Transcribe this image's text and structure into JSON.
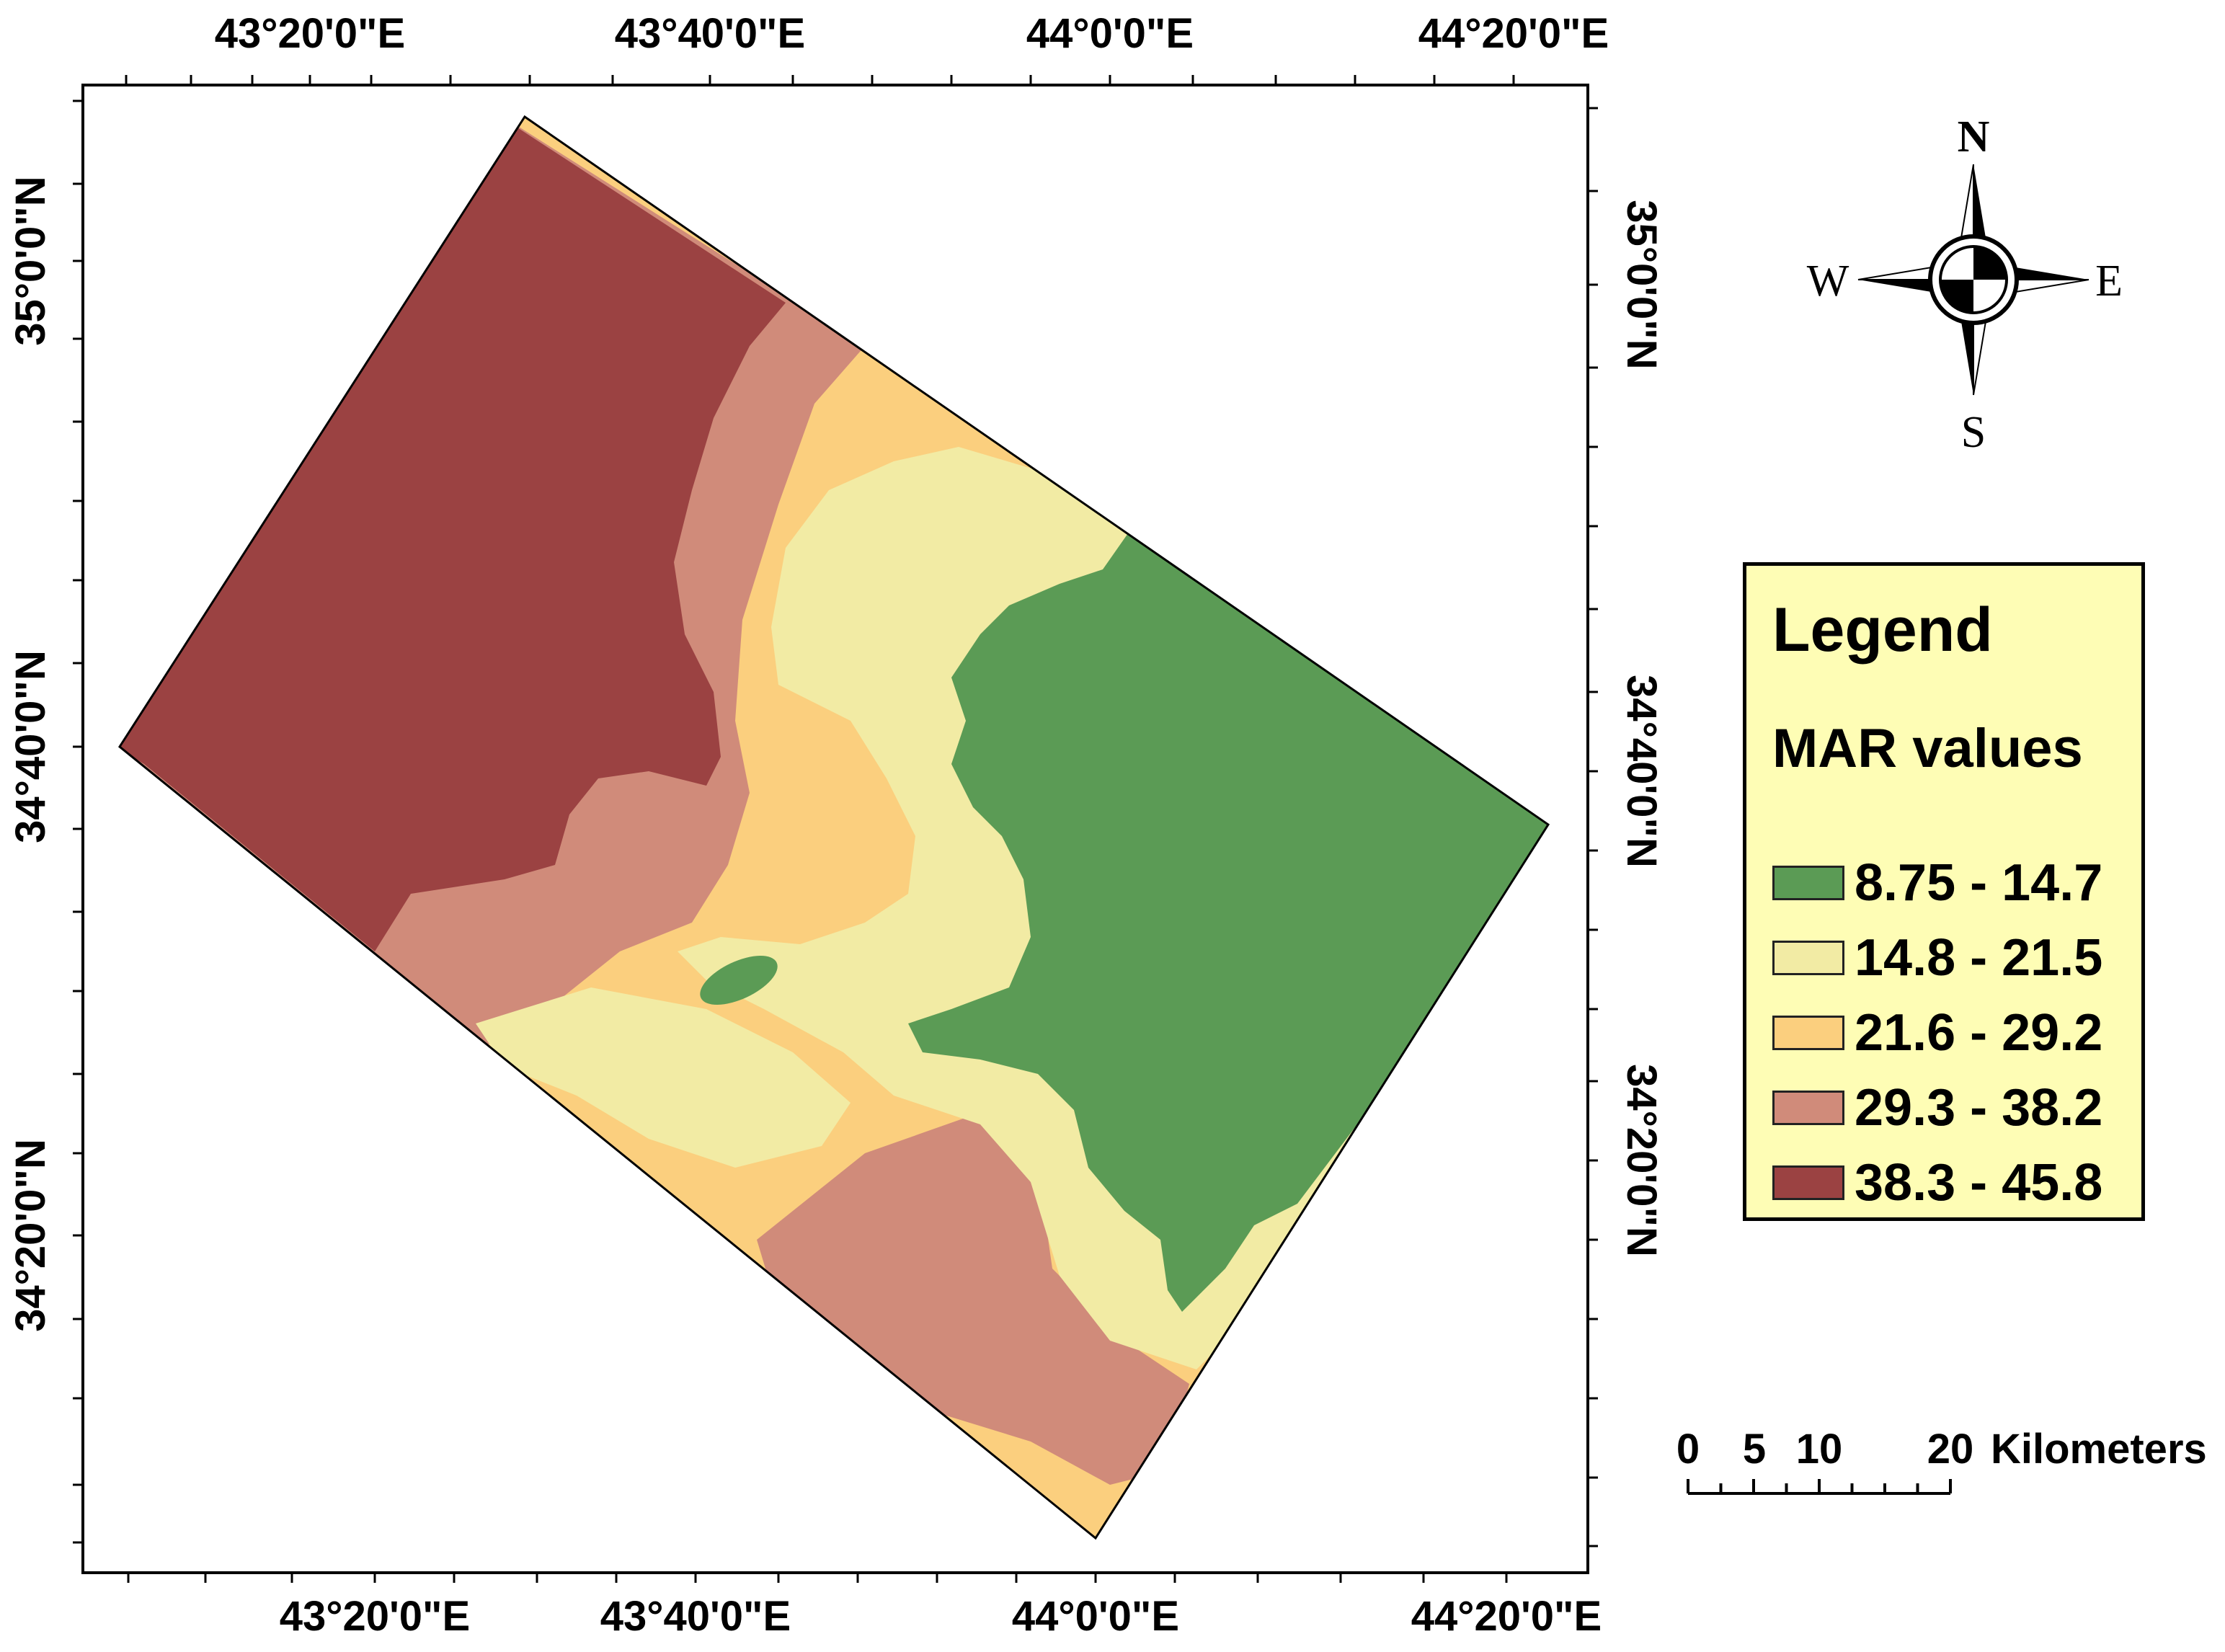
{
  "map": {
    "lon_ticks_top": [
      "43°20'0\"E",
      "43°40'0\"E",
      "44°0'0\"E",
      "44°20'0\"E"
    ],
    "lon_ticks_bottom": [
      "43°20'0\"E",
      "43°40'0\"E",
      "44°0'0\"E",
      "44°20'0\"E"
    ],
    "lat_ticks_left": [
      "35°0'0\"N",
      "34°40'0\"N",
      "34°20'0\"N"
    ],
    "lat_ticks_right": [
      "35°0'0\"N",
      "34°40'0\"N",
      "34°20'0\"N"
    ]
  },
  "compass": {
    "n": "N",
    "s": "S",
    "e": "E",
    "w": "W"
  },
  "legend": {
    "title": "Legend",
    "subtitle": "MAR values",
    "items": [
      {
        "label": "8.75 - 14.7",
        "color": "#5b9b55"
      },
      {
        "label": "14.8 - 21.5",
        "color": "#f2eba4"
      },
      {
        "label": "21.6 - 29.2",
        "color": "#fbcf7e"
      },
      {
        "label": "29.3 - 38.2",
        "color": "#d08b7a"
      },
      {
        "label": "38.3 - 45.8",
        "color": "#9b4242"
      }
    ]
  },
  "scale_bar": {
    "labels": [
      "0",
      "5",
      "10",
      "20"
    ],
    "unit": "Kilometers"
  }
}
